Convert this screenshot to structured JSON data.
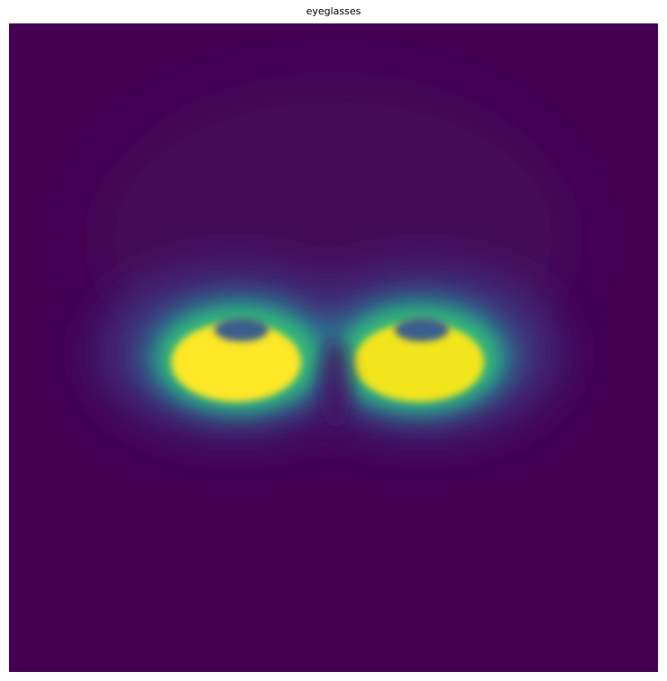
{
  "figure": {
    "title": "eyeglasses",
    "colormap": "viridis",
    "colors": {
      "background": "#440154",
      "low": "#3b528b",
      "mid": "#21918c",
      "high": "#5ec962",
      "peak": "#fde725"
    }
  }
}
